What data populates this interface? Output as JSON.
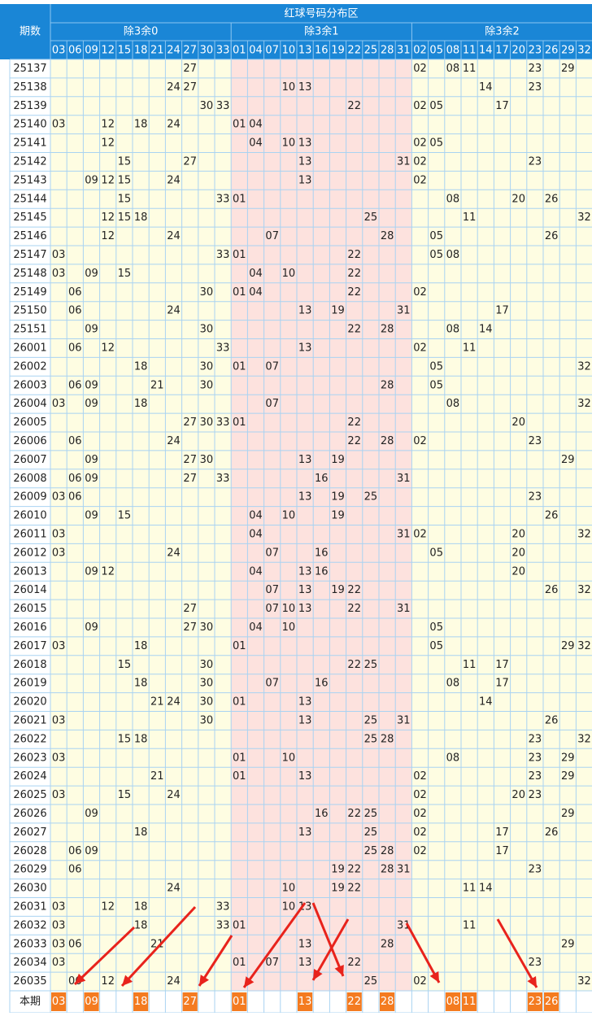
{
  "header": {
    "title": "红球号码分布区",
    "period_label": "期数",
    "groups": [
      {
        "name": "除3余0",
        "numbers": [
          "03",
          "06",
          "09",
          "12",
          "15",
          "18",
          "21",
          "24",
          "27",
          "30",
          "33"
        ]
      },
      {
        "name": "除3余1",
        "numbers": [
          "01",
          "04",
          "07",
          "10",
          "13",
          "16",
          "19",
          "22",
          "25",
          "28",
          "31"
        ]
      },
      {
        "name": "除3余2",
        "numbers": [
          "02",
          "05",
          "08",
          "11",
          "14",
          "17",
          "20",
          "23",
          "26",
          "29",
          "32"
        ]
      }
    ]
  },
  "rows": [
    {
      "period": "25137",
      "numbers": [
        "27",
        "02",
        "08",
        "11",
        "23",
        "29"
      ]
    },
    {
      "period": "25138",
      "numbers": [
        "24",
        "27",
        "10",
        "13",
        "14",
        "23"
      ]
    },
    {
      "period": "25139",
      "numbers": [
        "30",
        "33",
        "22",
        "02",
        "05",
        "17"
      ]
    },
    {
      "period": "25140",
      "numbers": [
        "03",
        "12",
        "18",
        "24",
        "01",
        "04"
      ]
    },
    {
      "period": "25141",
      "numbers": [
        "12",
        "04",
        "10",
        "13",
        "02",
        "05"
      ]
    },
    {
      "period": "25142",
      "numbers": [
        "15",
        "27",
        "13",
        "31",
        "02",
        "23"
      ]
    },
    {
      "period": "25143",
      "numbers": [
        "09",
        "12",
        "15",
        "24",
        "13",
        "02"
      ]
    },
    {
      "period": "25144",
      "numbers": [
        "15",
        "33",
        "01",
        "08",
        "20",
        "26"
      ]
    },
    {
      "period": "25145",
      "numbers": [
        "12",
        "15",
        "18",
        "25",
        "11",
        "32"
      ]
    },
    {
      "period": "25146",
      "numbers": [
        "12",
        "24",
        "07",
        "28",
        "05",
        "26"
      ]
    },
    {
      "period": "25147",
      "numbers": [
        "03",
        "33",
        "01",
        "22",
        "05",
        "08"
      ]
    },
    {
      "period": "25148",
      "numbers": [
        "03",
        "09",
        "15",
        "04",
        "10",
        "22"
      ]
    },
    {
      "period": "25149",
      "numbers": [
        "06",
        "30",
        "01",
        "04",
        "22",
        "02"
      ]
    },
    {
      "period": "25150",
      "numbers": [
        "06",
        "24",
        "13",
        "19",
        "31",
        "17"
      ]
    },
    {
      "period": "25151",
      "numbers": [
        "09",
        "30",
        "22",
        "28",
        "08",
        "14"
      ]
    },
    {
      "period": "26001",
      "numbers": [
        "06",
        "12",
        "33",
        "13",
        "02",
        "11"
      ]
    },
    {
      "period": "26002",
      "numbers": [
        "18",
        "30",
        "01",
        "07",
        "05",
        "32"
      ]
    },
    {
      "period": "26003",
      "numbers": [
        "06",
        "09",
        "21",
        "30",
        "28",
        "05"
      ]
    },
    {
      "period": "26004",
      "numbers": [
        "03",
        "09",
        "18",
        "07",
        "08",
        "32"
      ]
    },
    {
      "period": "26005",
      "numbers": [
        "27",
        "30",
        "33",
        "01",
        "22",
        "20"
      ]
    },
    {
      "period": "26006",
      "numbers": [
        "06",
        "24",
        "22",
        "28",
        "02",
        "23"
      ]
    },
    {
      "period": "26007",
      "numbers": [
        "09",
        "27",
        "30",
        "13",
        "19",
        "29"
      ]
    },
    {
      "period": "26008",
      "numbers": [
        "06",
        "09",
        "27",
        "33",
        "16",
        "31"
      ]
    },
    {
      "period": "26009",
      "numbers": [
        "03",
        "06",
        "13",
        "19",
        "25",
        "23"
      ]
    },
    {
      "period": "26010",
      "numbers": [
        "09",
        "15",
        "04",
        "10",
        "19",
        "26"
      ]
    },
    {
      "period": "26011",
      "numbers": [
        "03",
        "04",
        "31",
        "02",
        "20",
        "32"
      ]
    },
    {
      "period": "26012",
      "numbers": [
        "03",
        "24",
        "07",
        "16",
        "05",
        "20"
      ]
    },
    {
      "period": "26013",
      "numbers": [
        "09",
        "12",
        "04",
        "13",
        "16",
        "20"
      ]
    },
    {
      "period": "26014",
      "numbers": [
        "07",
        "13",
        "19",
        "22",
        "26",
        "32"
      ]
    },
    {
      "period": "26015",
      "numbers": [
        "27",
        "07",
        "10",
        "13",
        "22",
        "31"
      ]
    },
    {
      "period": "26016",
      "numbers": [
        "09",
        "27",
        "30",
        "04",
        "10",
        "05"
      ]
    },
    {
      "period": "26017",
      "numbers": [
        "03",
        "18",
        "01",
        "05",
        "29",
        "32"
      ]
    },
    {
      "period": "26018",
      "numbers": [
        "15",
        "30",
        "22",
        "25",
        "11",
        "17"
      ]
    },
    {
      "period": "26019",
      "numbers": [
        "18",
        "30",
        "07",
        "16",
        "08",
        "17"
      ]
    },
    {
      "period": "26020",
      "numbers": [
        "21",
        "24",
        "30",
        "01",
        "13",
        "14"
      ]
    },
    {
      "period": "26021",
      "numbers": [
        "03",
        "30",
        "13",
        "25",
        "31",
        "26"
      ]
    },
    {
      "period": "26022",
      "numbers": [
        "15",
        "18",
        "25",
        "28",
        "23",
        "32"
      ]
    },
    {
      "period": "26023",
      "numbers": [
        "03",
        "01",
        "10",
        "08",
        "23",
        "29"
      ]
    },
    {
      "period": "26024",
      "numbers": [
        "21",
        "01",
        "13",
        "02",
        "23",
        "29"
      ]
    },
    {
      "period": "26025",
      "numbers": [
        "03",
        "15",
        "24",
        "02",
        "20",
        "23"
      ]
    },
    {
      "period": "26026",
      "numbers": [
        "09",
        "16",
        "22",
        "25",
        "02",
        "29"
      ]
    },
    {
      "period": "26027",
      "numbers": [
        "18",
        "13",
        "25",
        "02",
        "17",
        "26"
      ]
    },
    {
      "period": "26028",
      "numbers": [
        "06",
        "09",
        "25",
        "28",
        "02",
        "17"
      ]
    },
    {
      "period": "26029",
      "numbers": [
        "06",
        "19",
        "22",
        "28",
        "31",
        "23"
      ]
    },
    {
      "period": "26030",
      "numbers": [
        "24",
        "10",
        "19",
        "22",
        "11",
        "14"
      ]
    },
    {
      "period": "26031",
      "numbers": [
        "03",
        "12",
        "18",
        "33",
        "10",
        "13"
      ]
    },
    {
      "period": "26032",
      "numbers": [
        "03",
        "18",
        "33",
        "01",
        "31",
        "11"
      ]
    },
    {
      "period": "26033",
      "numbers": [
        "03",
        "06",
        "21",
        "13",
        "28",
        "29"
      ]
    },
    {
      "period": "26034",
      "numbers": [
        "03",
        "01",
        "07",
        "13",
        "22",
        "23"
      ]
    },
    {
      "period": "26035",
      "numbers": [
        "06",
        "12",
        "24",
        "25",
        "02",
        "32"
      ]
    }
  ],
  "current": {
    "label": "本期",
    "numbers": [
      "03",
      "09",
      "18",
      "27",
      "01",
      "13",
      "22",
      "28",
      "08",
      "11",
      "23",
      "26"
    ]
  }
}
